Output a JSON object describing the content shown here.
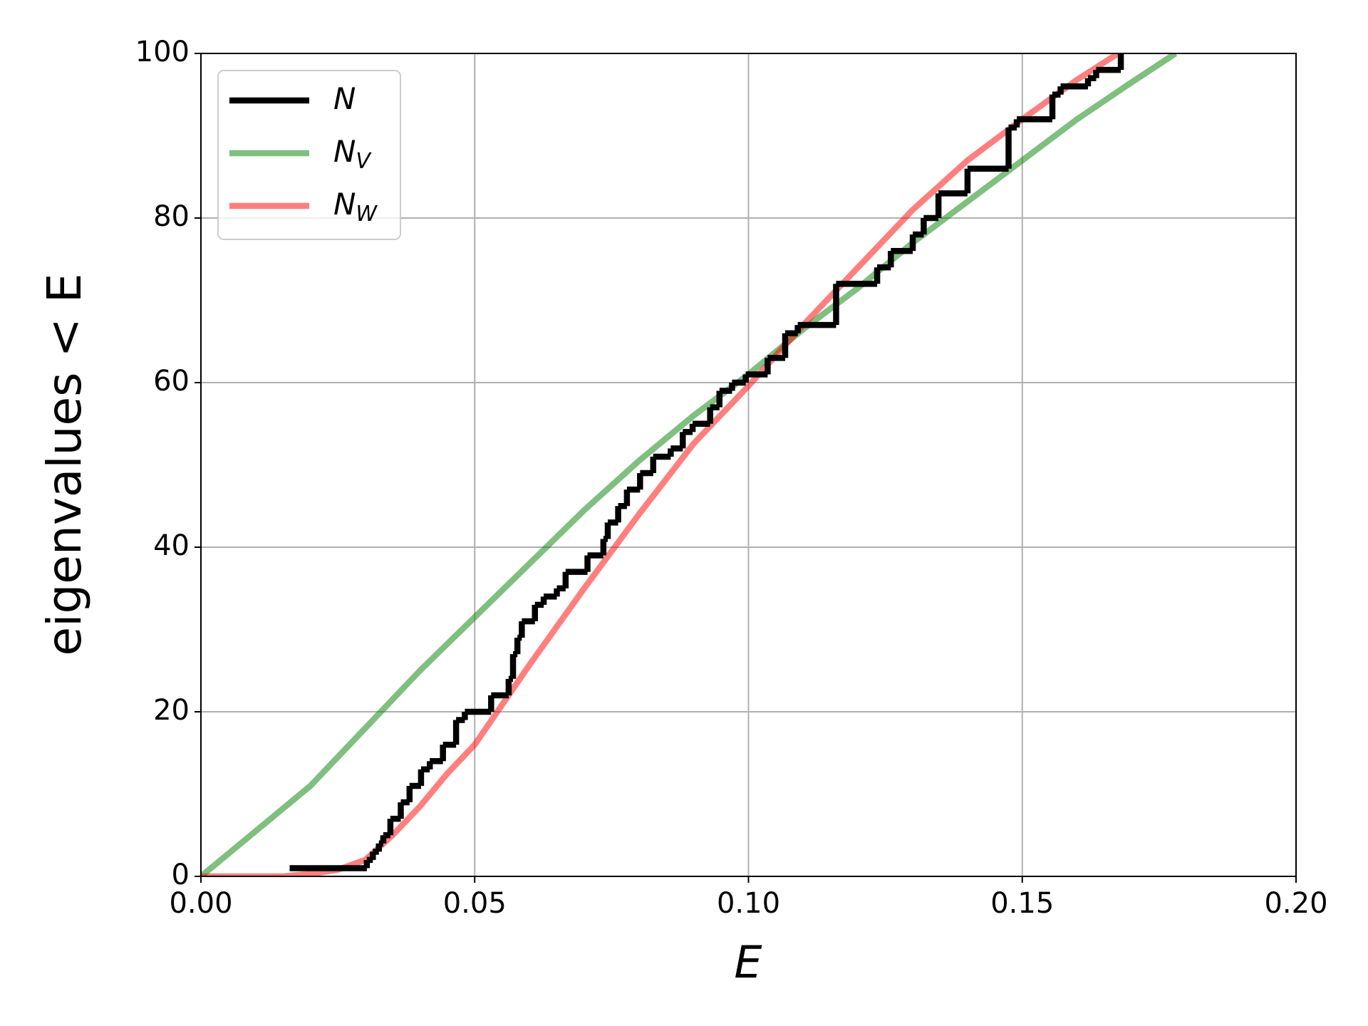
{
  "chart_data": {
    "type": "line",
    "xlabel": "E",
    "ylabel": "eigenvalues  < E",
    "xlim": [
      0,
      0.2
    ],
    "ylim": [
      0,
      100
    ],
    "xticks": [
      {
        "value": 0,
        "label": "0.00"
      },
      {
        "value": 0.05,
        "label": "0.05"
      },
      {
        "value": 0.1,
        "label": "0.10"
      },
      {
        "value": 0.15,
        "label": "0.15"
      },
      {
        "value": 0.2,
        "label": "0.20"
      }
    ],
    "yticks": [
      0,
      20,
      40,
      60,
      80,
      100
    ],
    "grid": true,
    "legend": "upper left",
    "series": [
      {
        "name": "N",
        "color": "black",
        "alpha": 1,
        "drawstyle": "steps-post",
        "x": [
          0.0162,
          0.0303,
          0.0314,
          0.0325,
          0.0333,
          0.0346,
          0.0365,
          0.0381,
          0.0402,
          0.0418,
          0.0442,
          0.0466,
          0.0482,
          0.053,
          0.0562,
          0.057,
          0.0578,
          0.0586,
          0.061,
          0.0626,
          0.065,
          0.0666,
          0.0706,
          0.0735,
          0.0743,
          0.0762,
          0.0778,
          0.0802,
          0.0826,
          0.0858,
          0.088,
          0.0898,
          0.093,
          0.0947,
          0.097,
          0.0995,
          0.1035,
          0.1067,
          0.109,
          0.116,
          0.1235,
          0.126,
          0.13,
          0.132,
          0.1347,
          0.14,
          0.1475,
          0.149,
          0.1555,
          0.157,
          0.162,
          0.1635,
          0.168
        ],
        "values": [
          1,
          2,
          3,
          4,
          5,
          7,
          9,
          11,
          13,
          14,
          16,
          19,
          20,
          22,
          24,
          27,
          29,
          31,
          33,
          34,
          35,
          37,
          39,
          41,
          43,
          45,
          47,
          49,
          51,
          52,
          54,
          55,
          57,
          59,
          60,
          61,
          63,
          66,
          67,
          72,
          74,
          76,
          78,
          80,
          83,
          86,
          91,
          92,
          95,
          96,
          97,
          98,
          100
        ]
      },
      {
        "name": "N",
        "subscript": "V",
        "color": "green",
        "alpha": 0.5,
        "x": [
          0,
          0.01,
          0.02,
          0.03,
          0.04,
          0.05,
          0.06,
          0.07,
          0.08,
          0.09,
          0.1,
          0.11,
          0.12,
          0.13,
          0.14,
          0.15,
          0.16,
          0.17,
          0.178
        ],
        "values": [
          0,
          5.5,
          11,
          18,
          25,
          31.5,
          38,
          44.5,
          50.5,
          56,
          61,
          66.5,
          71.5,
          77,
          82,
          87,
          92,
          96.5,
          100
        ]
      },
      {
        "name": "N",
        "subscript": "W",
        "color": "red",
        "alpha": 0.5,
        "x": [
          0,
          0.015,
          0.02,
          0.025,
          0.03,
          0.035,
          0.04,
          0.045,
          0.05,
          0.06,
          0.07,
          0.08,
          0.09,
          0.1,
          0.11,
          0.12,
          0.13,
          0.14,
          0.15,
          0.16,
          0.1675
        ],
        "values": [
          0,
          0,
          0.3,
          0.8,
          2,
          5,
          8.5,
          12.5,
          16,
          25.7,
          35,
          44,
          52.6,
          59.6,
          67,
          74,
          81,
          87,
          92,
          96.8,
          100
        ]
      }
    ]
  }
}
